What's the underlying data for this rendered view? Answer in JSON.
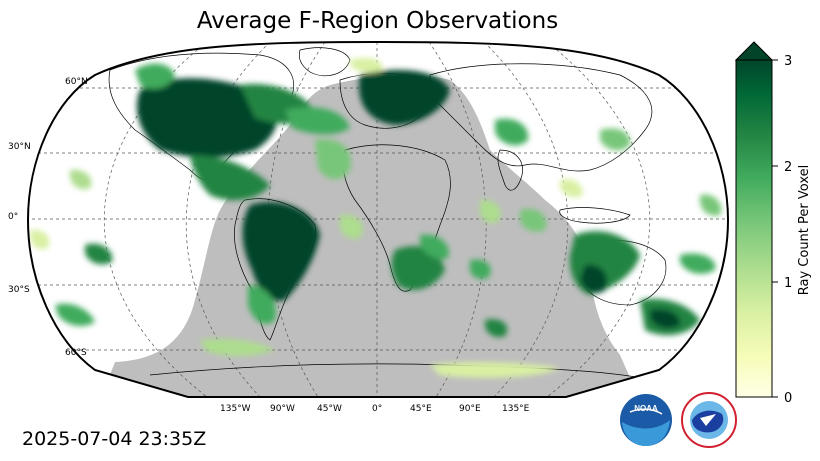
{
  "title": "Average F-Region Observations",
  "timestamp": "2025-07-04 23:35Z",
  "lat_labels": [
    "60°N",
    "30°N",
    "0°",
    "30°S",
    "60°S"
  ],
  "lon_labels": [
    "135°W",
    "90°W",
    "45°W",
    "0°",
    "45°E",
    "90°E",
    "135°E"
  ],
  "colorbar": {
    "label": "Ray Count Per Voxel",
    "ticks": [
      "0",
      "1",
      "2",
      "3"
    ],
    "min": 0,
    "max": 3,
    "extend": "max",
    "colors": [
      "#ffffe5",
      "#f7fcb9",
      "#d9f0a3",
      "#addd8e",
      "#78c679",
      "#41ab5d",
      "#238443",
      "#006837",
      "#004529"
    ]
  },
  "logos": [
    {
      "name": "NOAA",
      "text": "NOAA"
    },
    {
      "name": "National Weather Service",
      "text": "NATIONAL WEATHER SERVICE"
    }
  ],
  "map_colors": {
    "night_shade": "#bebebe",
    "ocean": "#ffffff",
    "grid": "#555555",
    "outline": "#000000"
  }
}
